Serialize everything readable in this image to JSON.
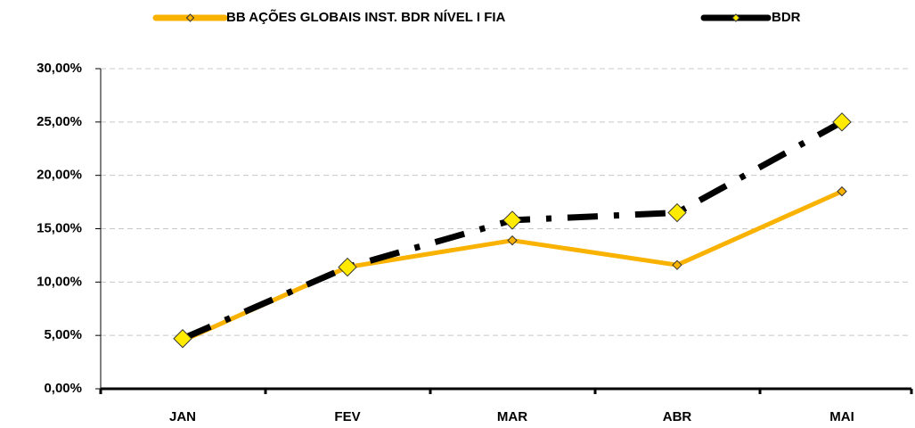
{
  "chart_data": {
    "type": "line",
    "categories": [
      "JAN",
      "FEV",
      "MAR",
      "ABR",
      "MAI"
    ],
    "series": [
      {
        "name": "BB AÇÕES GLOBAIS INST. BDR NÍVEL I FIA",
        "color": "#f9b200",
        "values": [
          4.5,
          11.4,
          13.9,
          11.6,
          18.5
        ]
      },
      {
        "name": "BDR",
        "color": "#000000",
        "values": [
          4.7,
          11.4,
          15.8,
          16.5,
          25.0
        ]
      }
    ],
    "ylim": [
      0,
      30
    ],
    "yticks": [
      {
        "value": 0,
        "label": "0,00%"
      },
      {
        "value": 5,
        "label": "5,00%"
      },
      {
        "value": 10,
        "label": "10,00%"
      },
      {
        "value": 15,
        "label": "15,00%"
      },
      {
        "value": 20,
        "label": "20,00%"
      },
      {
        "value": 25,
        "label": "25,00%"
      },
      {
        "value": 30,
        "label": "30,00%"
      }
    ],
    "grid": true,
    "legend": "top"
  }
}
